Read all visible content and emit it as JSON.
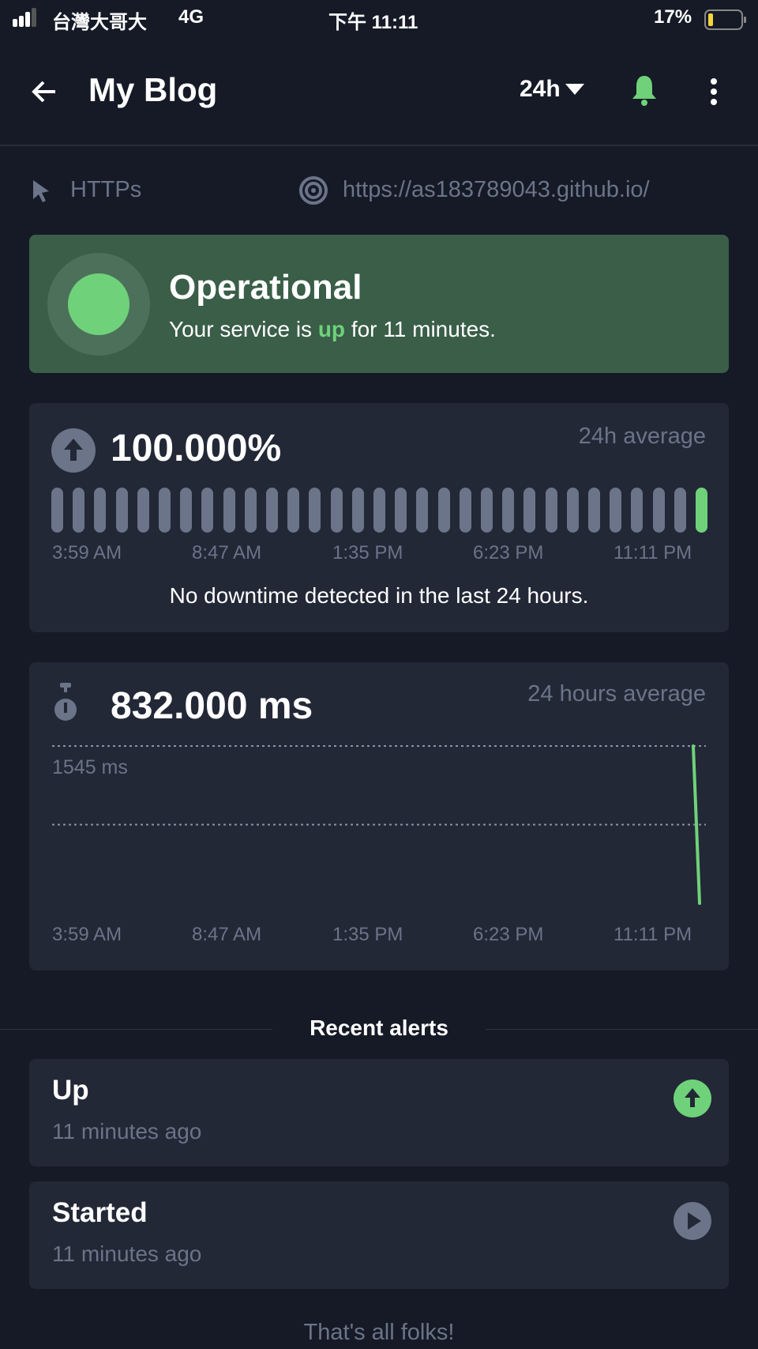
{
  "status_bar": {
    "carrier": "台灣大哥大",
    "network": "4G",
    "time": "下午 11:11",
    "battery": "17%",
    "battery_level": 0.17
  },
  "header": {
    "title": "My Blog",
    "period": "24h",
    "icons": [
      "arrow-left-icon",
      "caret-down-icon",
      "bell-icon",
      "more-vertical-icon"
    ]
  },
  "info": {
    "type": "HTTPs",
    "url": "https://as183789043.github.io/"
  },
  "status_card": {
    "title": "Operational",
    "text_prefix": "Your service is ",
    "text_state": "up",
    "text_suffix": " for 11 minutes.",
    "color": "#3a5e48",
    "accent": "#6fd27a"
  },
  "uptime": {
    "value": "100.000%",
    "label": "24h average",
    "bars_total": 31,
    "bars_up_recent": 1,
    "ticks": [
      "3:59 AM",
      "8:47 AM",
      "1:35 PM",
      "6:23 PM",
      "11:11 PM"
    ],
    "message": "No downtime detected in the last 24 hours."
  },
  "response": {
    "value": "832.000 ms",
    "label": "24 hours average",
    "max_label": "1545 ms",
    "ticks": [
      "3:59 AM",
      "8:47 AM",
      "1:35 PM",
      "6:23 PM",
      "11:11 PM"
    ]
  },
  "chart_data": {
    "type": "line",
    "series": [
      {
        "values": [
          1545,
          119
        ]
      }
    ],
    "ylim": [
      119,
      1545
    ],
    "reference_lines": [
      1545,
      832
    ],
    "xlabels": [
      "3:59 AM",
      "8:47 AM",
      "1:35 PM",
      "6:23 PM",
      "11:11 PM"
    ],
    "line_color": "#6fd27a"
  },
  "alerts": {
    "heading": "Recent alerts",
    "items": [
      {
        "title": "Up",
        "time": "11 minutes ago",
        "icon": "arrow-up-circle-icon"
      },
      {
        "title": "Started",
        "time": "11 minutes ago",
        "icon": "play-circle-icon"
      }
    ],
    "footer": "That's all folks!"
  }
}
